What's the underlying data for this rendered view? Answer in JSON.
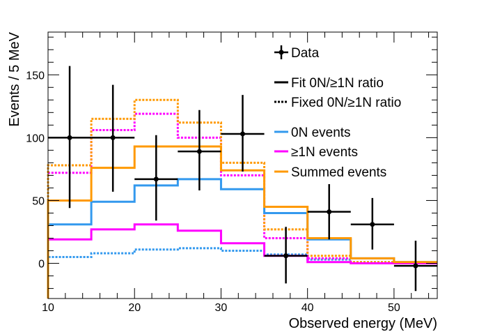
{
  "chart_data": {
    "type": "histogram",
    "xlabel": "Observed energy (MeV)",
    "ylabel": "Events / 5 MeV",
    "xlim": [
      10,
      55
    ],
    "ylim": [
      -28,
      184
    ],
    "x_ticks": [
      10,
      20,
      30,
      40,
      50
    ],
    "y_ticks": [
      0,
      50,
      100,
      150
    ],
    "bin_edges": [
      10,
      15,
      20,
      25,
      30,
      35,
      40,
      45,
      50,
      55
    ],
    "series": [
      {
        "name": "0N events",
        "style": "solid",
        "color": "#3399ee",
        "values": [
          31,
          49,
          62,
          67,
          59,
          40,
          19,
          4,
          1
        ]
      },
      {
        "name": "≥1N events",
        "style": "solid",
        "color": "#ff00ff",
        "values": [
          19,
          27,
          31,
          26,
          16,
          6,
          1,
          0,
          0
        ]
      },
      {
        "name": "Summed events",
        "style": "solid",
        "color": "#ff9900",
        "values": [
          50,
          76,
          93,
          93,
          74,
          45,
          20,
          4,
          1
        ]
      },
      {
        "name": "0N events (fixed ratio)",
        "style": "dotted",
        "color": "#3399ee",
        "values": [
          5,
          8,
          11,
          12,
          10,
          7,
          3,
          1,
          0
        ]
      },
      {
        "name": "≥1N events (fixed ratio)",
        "style": "dotted",
        "color": "#ff00ff",
        "values": [
          72,
          106,
          119,
          100,
          70,
          20,
          4,
          0,
          0
        ]
      },
      {
        "name": "Summed events (fixed ratio)",
        "style": "dotted",
        "color": "#ff9900",
        "values": [
          78,
          115,
          130,
          112,
          80,
          27,
          6,
          1,
          0
        ]
      }
    ],
    "data_points": {
      "name": "Data",
      "x": [
        12.5,
        17.5,
        22.5,
        27.5,
        32.5,
        37.5,
        42.5,
        47.5,
        52.5
      ],
      "y": [
        100,
        100,
        67,
        89,
        103,
        6,
        41,
        31,
        -2
      ],
      "err_low": [
        56,
        43,
        33,
        31,
        30,
        22,
        22,
        20,
        20
      ],
      "err_high": [
        57,
        42,
        35,
        33,
        31,
        23,
        22,
        21,
        20
      ]
    },
    "legend": {
      "position": "top-right",
      "entries": [
        {
          "label": "Data",
          "marker": "point-errorbar",
          "color": "#000000"
        },
        {
          "label": "Fit 0N/≥1N ratio",
          "marker": "solid-line",
          "color": "#000000"
        },
        {
          "label": "Fixed 0N/≥1N ratio",
          "marker": "dotted-line",
          "color": "#000000"
        },
        {
          "label": "0N events",
          "marker": "solid-line",
          "color": "#3399ee"
        },
        {
          "label": "≥1N events",
          "marker": "solid-line",
          "color": "#ff00ff"
        },
        {
          "label": "Summed events",
          "marker": "solid-line",
          "color": "#ff9900"
        }
      ]
    }
  }
}
